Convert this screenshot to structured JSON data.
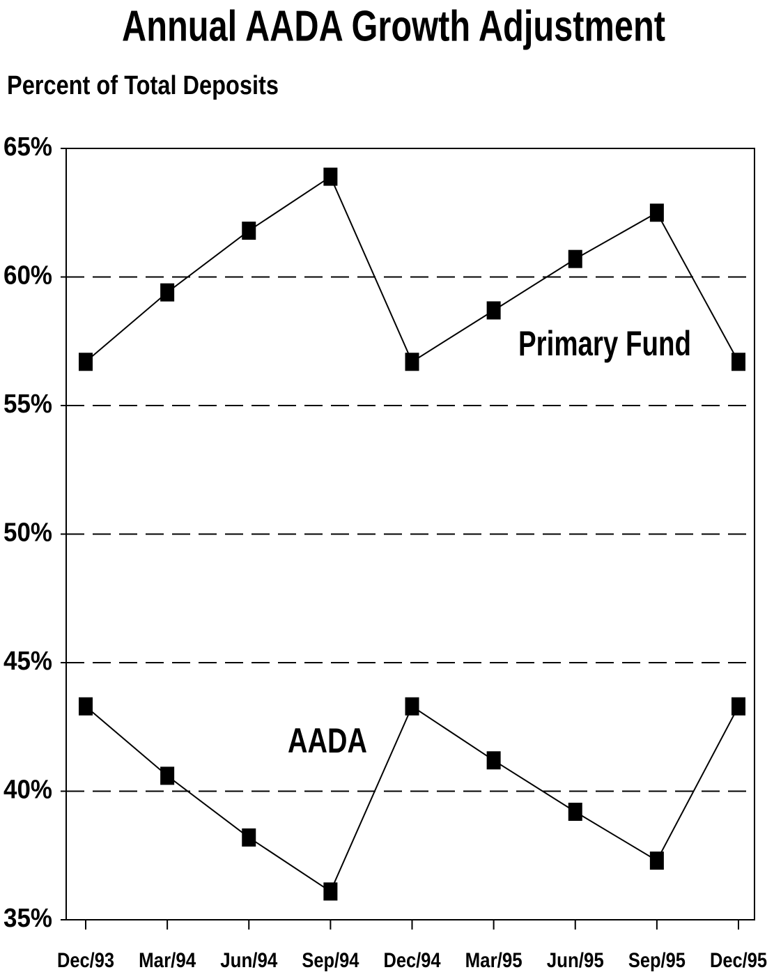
{
  "chart_data": {
    "type": "line",
    "title": "Annual AADA Growth Adjustment",
    "subtitle": "Percent of Total Deposits",
    "categories": [
      "Dec/93",
      "Mar/94",
      "Jun/94",
      "Sep/94",
      "Dec/94",
      "Mar/95",
      "Jun/95",
      "Sep/95",
      "Dec/95"
    ],
    "series": [
      {
        "name": "Primary Fund",
        "color": "#000000",
        "values": [
          56.7,
          59.4,
          61.8,
          63.9,
          56.7,
          58.7,
          60.7,
          62.5,
          56.7
        ]
      },
      {
        "name": "AADA",
        "color": "#000000",
        "values": [
          43.3,
          40.6,
          38.2,
          36.1,
          43.3,
          41.2,
          39.2,
          37.3,
          43.3
        ]
      }
    ],
    "ylim": [
      35,
      65
    ],
    "yticks": [
      {
        "value": 35,
        "label": "35%"
      },
      {
        "value": 40,
        "label": "40%"
      },
      {
        "value": 45,
        "label": "45%"
      },
      {
        "value": 50,
        "label": "50%"
      },
      {
        "value": 55,
        "label": "55%"
      },
      {
        "value": 60,
        "label": "60%"
      },
      {
        "value": 65,
        "label": "65%"
      }
    ],
    "grid": true
  }
}
